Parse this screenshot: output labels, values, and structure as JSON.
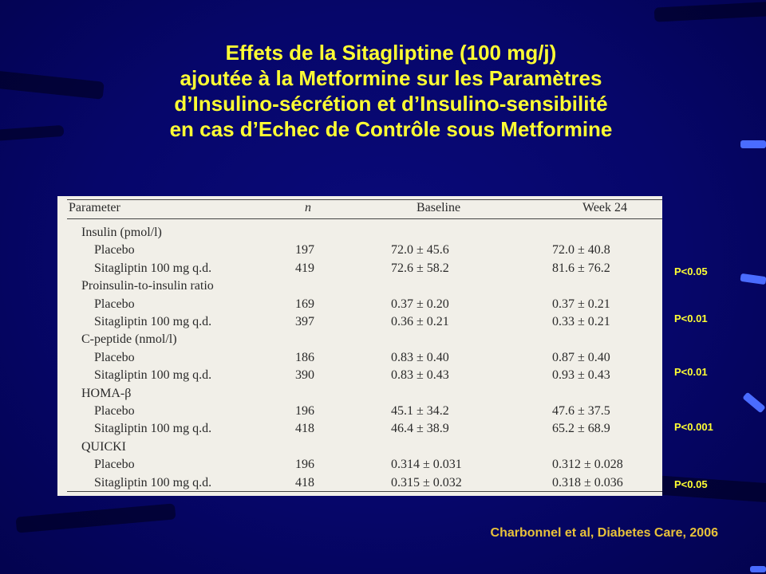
{
  "slide": {
    "title_lines": [
      "Effets de la Sitagliptine (100 mg/j)",
      "ajoutée à la Metformine sur les Paramètres",
      "d’Insulino-sécrétion et d’Insulino-sensibilité",
      "en cas d’Echec de Contrôle sous Metformine"
    ],
    "citation": "Charbonnel et al, Diabetes Care, 2006",
    "colors": {
      "background": "#06066a",
      "title": "#ffff33",
      "citation": "#e8c23a",
      "table_bg": "#f1efe8"
    }
  },
  "table": {
    "headers": [
      "Parameter",
      "n",
      "Baseline",
      "Week 24"
    ],
    "groups": [
      {
        "label": "Insulin (pmol/l)",
        "rows": [
          {
            "label": "Placebo",
            "n": "197",
            "baseline": "72.0 ± 45.6",
            "week24": "72.0 ± 40.8"
          },
          {
            "label": "Sitagliptin 100 mg q.d.",
            "n": "419",
            "baseline": "72.6 ± 58.2",
            "week24": "81.6 ± 76.2"
          }
        ]
      },
      {
        "label": "Proinsulin-to-insulin ratio",
        "rows": [
          {
            "label": "Placebo",
            "n": "169",
            "baseline": "0.37 ± 0.20",
            "week24": "0.37 ± 0.21"
          },
          {
            "label": "Sitagliptin 100 mg q.d.",
            "n": "397",
            "baseline": "0.36 ± 0.21",
            "week24": "0.33 ± 0.21"
          }
        ]
      },
      {
        "label": "C-peptide (nmol/l)",
        "rows": [
          {
            "label": "Placebo",
            "n": "186",
            "baseline": "0.83 ± 0.40",
            "week24": "0.87 ± 0.40"
          },
          {
            "label": "Sitagliptin 100 mg q.d.",
            "n": "390",
            "baseline": "0.83 ± 0.43",
            "week24": "0.93 ± 0.43"
          }
        ]
      },
      {
        "label": "HOMA-β",
        "rows": [
          {
            "label": "Placebo",
            "n": "196",
            "baseline": "45.1 ± 34.2",
            "week24": "47.6 ± 37.5"
          },
          {
            "label": "Sitagliptin 100 mg q.d.",
            "n": "418",
            "baseline": "46.4 ± 38.9",
            "week24": "65.2 ± 68.9"
          }
        ]
      },
      {
        "label": "QUICKI",
        "rows": [
          {
            "label": "Placebo",
            "n": "196",
            "baseline": "0.314 ± 0.031",
            "week24": "0.312 ± 0.028"
          },
          {
            "label": "Sitagliptin 100 mg q.d.",
            "n": "418",
            "baseline": "0.315 ± 0.032",
            "week24": "0.318 ± 0.036"
          }
        ]
      }
    ]
  },
  "p_values": [
    "P<0.05",
    "P<0.01",
    "P<0.01",
    "P<0.001",
    "P<0.05"
  ]
}
